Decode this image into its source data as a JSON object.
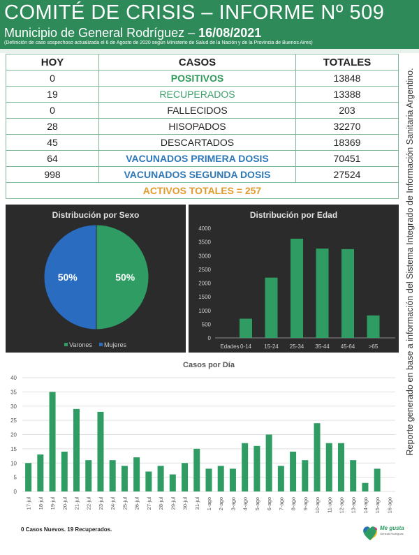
{
  "header": {
    "title": "COMITÉ DE CRISIS – INFORME Nº 509",
    "subtitle_prefix": "Municipio de General Rodríguez – ",
    "subtitle_date": "16/08/2021",
    "note": "(Definición de caso sospechoso actualizada el 6 de Agosto de 2020 según Ministerio de Salud de la Nación y de la Provincia de Buenos Aires)",
    "bg_color": "#2f8a5a"
  },
  "table": {
    "headers": [
      "HOY",
      "CASOS",
      "TOTALES"
    ],
    "rows": [
      {
        "hoy": "0",
        "caso": "POSITIVOS",
        "total": "13848"
      },
      {
        "hoy": "19",
        "caso": "RECUPERADOS",
        "total": "13388"
      },
      {
        "hoy": "0",
        "caso": "FALLECIDOS",
        "total": "203"
      },
      {
        "hoy": "28",
        "caso": "HISOPADOS",
        "total": "32270"
      },
      {
        "hoy": "45",
        "caso": "DESCARTADOS",
        "total": "18369"
      },
      {
        "hoy": "64",
        "caso": "VACUNADOS PRIMERA DOSIS",
        "total": "70451"
      },
      {
        "hoy": "998",
        "caso": "VACUNADOS SEGUNDA DOSIS",
        "total": "27524"
      }
    ],
    "activos": "ACTIVOS TOTALES = 257"
  },
  "side_text": "Reporte generado en base a información del Sistema Integrado de Información Sanitaria Argentino.",
  "footnote": "0 Casos Nuevos. 19 Recuperados.",
  "logo": {
    "line1": "Me gusta",
    "line2": "General Rodríguez"
  },
  "chart_data": [
    {
      "type": "pie",
      "title": "Distribución por Sexo",
      "categories": [
        "Varones",
        "Mujeres"
      ],
      "values": [
        50,
        50
      ],
      "labels": [
        "50%",
        "50%"
      ],
      "colors": [
        "#2e9c63",
        "#2a6cc0"
      ],
      "legend": "bottom"
    },
    {
      "type": "bar",
      "title": "Distribución por Edad",
      "xlabel": "Edades",
      "categories": [
        "0-14",
        "15-24",
        "25-34",
        "35-44",
        "45-64",
        ">65"
      ],
      "values": [
        700,
        2200,
        3620,
        3260,
        3240,
        820
      ],
      "ylim": [
        0,
        4000
      ],
      "yticks": [
        "0",
        "500",
        "1000",
        "1500",
        "2000",
        "2500",
        "3000",
        "3500",
        "4000"
      ],
      "color": "#2e9c63",
      "grid": false
    },
    {
      "type": "bar",
      "title": "Casos por Día",
      "categories": [
        "17-jul",
        "18-jul",
        "19-jul",
        "20-jul",
        "21-jul",
        "22-jul",
        "23-jul",
        "24-jul",
        "25-jul",
        "26-jul",
        "27-jul",
        "28-jul",
        "29-jul",
        "30-jul",
        "31-jul",
        "1-ago",
        "2-ago",
        "3-ago",
        "4-ago",
        "5-ago",
        "6-ago",
        "7-ago",
        "8-ago",
        "9-ago",
        "10-ago",
        "11-ago",
        "12-ago",
        "13-ago",
        "14-ago",
        "15-ago",
        "16-ago"
      ],
      "values": [
        10,
        13,
        35,
        14,
        29,
        11,
        28,
        11,
        9,
        12,
        7,
        9,
        6,
        10,
        15,
        8,
        9,
        8,
        17,
        16,
        20,
        9,
        14,
        11,
        24,
        17,
        17,
        11,
        3,
        8,
        0
      ],
      "ylim": [
        0,
        40
      ],
      "yticks": [
        "0",
        "5",
        "10",
        "15",
        "20",
        "25",
        "30",
        "35",
        "40"
      ],
      "color": "#2e9c63",
      "grid": true
    }
  ]
}
